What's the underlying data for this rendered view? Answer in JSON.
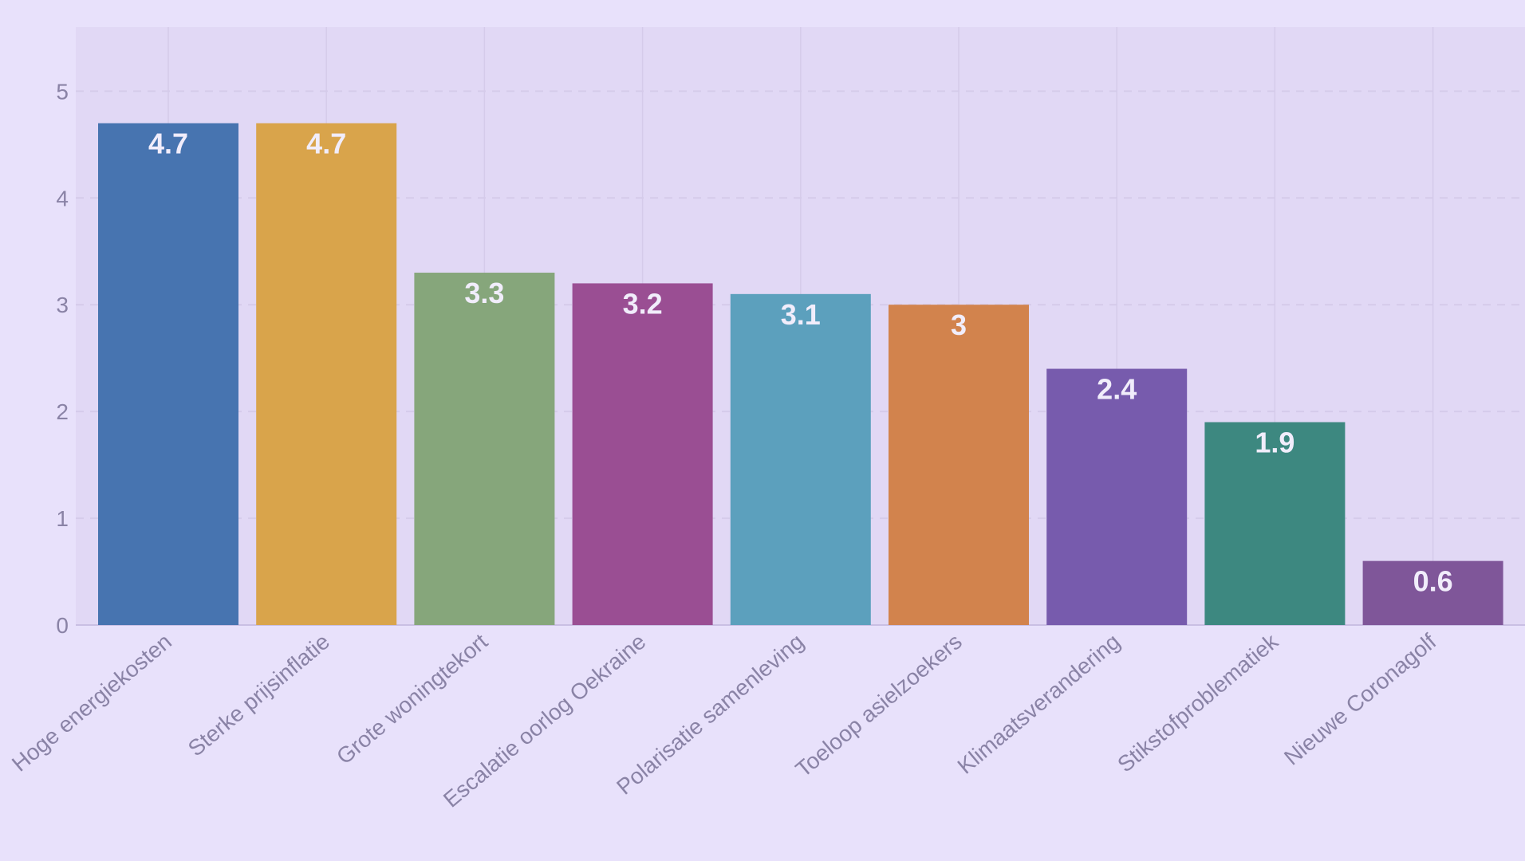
{
  "colors": {
    "page_background": "#e8e1fb",
    "plot_background": "#e1d8f5",
    "gridline": "#d5cbea",
    "zero_line": "#c9bfe3",
    "axis_text": "#8a83a6",
    "label_text": "#f1edfb"
  },
  "chart_data": {
    "type": "bar",
    "categories": [
      "Hoge energiekosten",
      "Sterke prijsinflatie",
      "Grote woningtekort",
      "Escalatie oorlog Oekraine",
      "Polarisatie samenleving",
      "Toeloop asielzoekers",
      "Klimaatsverandering",
      "Stikstofproblematiek",
      "Nieuwe Coronagolf"
    ],
    "values": [
      4.7,
      4.7,
      3.3,
      3.2,
      3.1,
      3,
      2.4,
      1.9,
      0.6
    ],
    "value_labels": [
      "4.7",
      "4.7",
      "3.3",
      "3.2",
      "3.1",
      "3",
      "2.4",
      "1.9",
      "0.6"
    ],
    "bar_colors": [
      "#4774b0",
      "#d9a44b",
      "#86a67b",
      "#9a4e93",
      "#5ca0bd",
      "#d2834d",
      "#775bad",
      "#3d8880",
      "#7f5699"
    ],
    "yticks": [
      0,
      1,
      2,
      3,
      4,
      5
    ],
    "ylim": [
      0,
      5.6
    ],
    "grid": true,
    "legend": "none",
    "title": "",
    "xlabel": "",
    "ylabel": ""
  }
}
